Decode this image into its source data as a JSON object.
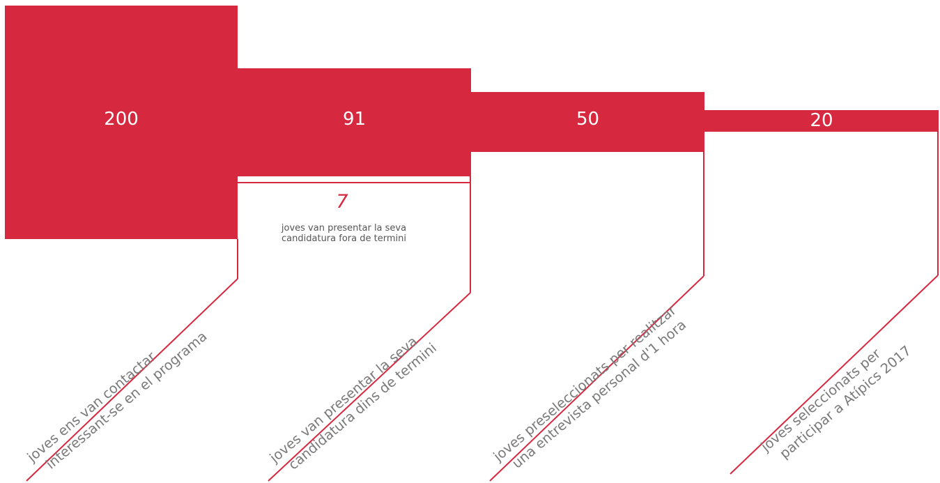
{
  "accent_color": "#d6283e",
  "stages": [
    {
      "count": "200",
      "line1": "joves ens van contactar",
      "line2": "interessant-se en el programa"
    },
    {
      "count": "91",
      "line1": "joves van presentar la seva",
      "line2": "candidatura dins de termini"
    },
    {
      "count": "50",
      "line1": "joves preseleccionats per realitzar",
      "line2": "una entrevista personal d'1 hora"
    },
    {
      "count": "20",
      "line1": "joves seleccionats per",
      "line2": "participar a Atípics 2017"
    }
  ],
  "late": {
    "count": "7",
    "line1": "joves van presentar la seva",
    "line2": "candidatura fora de termini"
  }
}
